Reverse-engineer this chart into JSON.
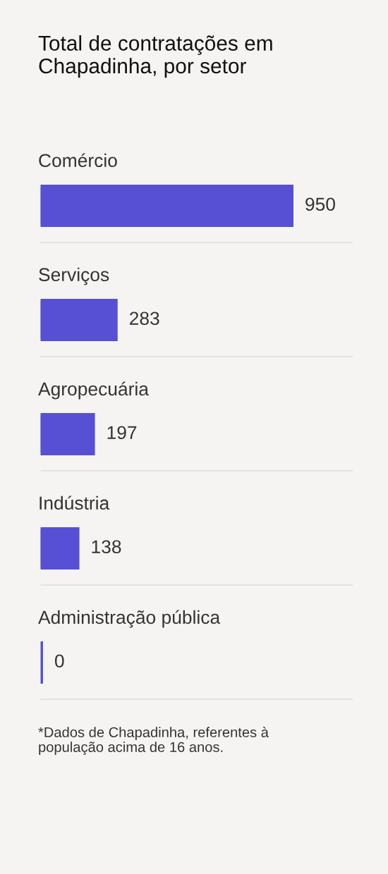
{
  "chart_data": {
    "type": "bar",
    "orientation": "horizontal",
    "title": "Total de contratações em Chapadinha, por setor",
    "categories": [
      "Comércio",
      "Serviços",
      "Agropecuária",
      "Indústria",
      "Administração pública"
    ],
    "values": [
      950,
      283,
      197,
      138,
      0
    ],
    "color": "#5750d5",
    "data_labels": true,
    "grid": "y",
    "tick_labels": "y",
    "annotations": [
      "*Dados de Chapadinha, referentes à população acima de 16 anos."
    ]
  }
}
